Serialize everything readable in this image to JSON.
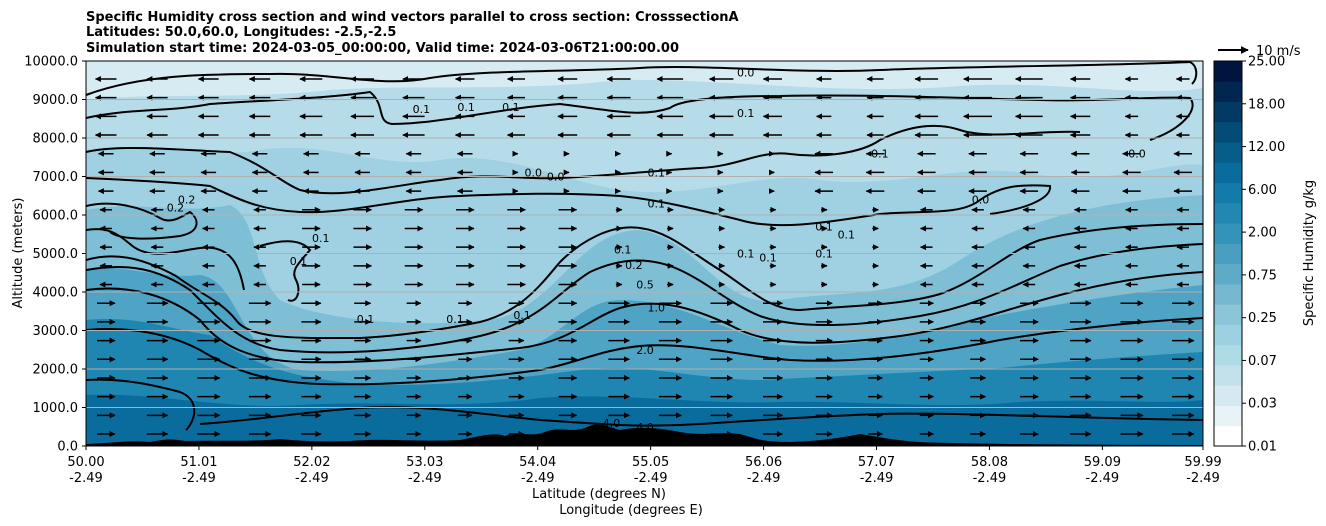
{
  "chart_data": {
    "type": "heatmap",
    "title_lines": [
      "Specific Humidity cross section and wind vectors parallel to cross section: CrosssectionA",
      "Latitudes: 50.0,60.0, Longitudes: -2.5,-2.5",
      "Simulation start time: 2024-03-05_00:00:00, Valid time: 2024-03-06T21:00:00.00"
    ],
    "xlabel_lat": "Latitude (degrees N)",
    "xlabel_lon": "Longitude (degrees E)",
    "ylabel": "Altitude (meters)",
    "x_ticks": [
      {
        "lat": "50.00",
        "lon": "-2.49"
      },
      {
        "lat": "51.01",
        "lon": "-2.49"
      },
      {
        "lat": "52.02",
        "lon": "-2.49"
      },
      {
        "lat": "53.03",
        "lon": "-2.49"
      },
      {
        "lat": "54.04",
        "lon": "-2.49"
      },
      {
        "lat": "55.05",
        "lon": "-2.49"
      },
      {
        "lat": "56.06",
        "lon": "-2.49"
      },
      {
        "lat": "57.07",
        "lon": "-2.49"
      },
      {
        "lat": "58.08",
        "lon": "-2.49"
      },
      {
        "lat": "59.09",
        "lon": "-2.49"
      },
      {
        "lat": "59.99",
        "lon": "-2.49"
      }
    ],
    "x_range": [
      50.0,
      59.99
    ],
    "y_ticks": [
      "0.0",
      "1000.0",
      "2000.0",
      "3000.0",
      "4000.0",
      "5000.0",
      "6000.0",
      "7000.0",
      "8000.0",
      "9000.0",
      "10000.0"
    ],
    "y_range": [
      0,
      10000
    ],
    "grid": true,
    "colorbar": {
      "label": "Specific Humidity g/kg",
      "tick_labels": [
        "0.01",
        "0.03",
        "0.07",
        "0.25",
        "0.75",
        "2.00",
        "6.00",
        "12.00",
        "18.00",
        "25.00"
      ],
      "colors": [
        "#ffffff",
        "#e7f3f6",
        "#d4eaf0",
        "#c2e1ea",
        "#addbe6",
        "#9dd0e0",
        "#8cc5d8",
        "#76b8d0",
        "#5fabc7",
        "#4a9fc0",
        "#3493b9",
        "#2288b2",
        "#137ba9",
        "#0a6c9c",
        "#065d8a",
        "#044c77",
        "#023a63",
        "#012650",
        "#00143f"
      ]
    },
    "quiver_key": {
      "label": "10 m/s",
      "magnitude_ms": 10
    },
    "contour_levels": [
      "0.0",
      "0.1",
      "0.2",
      "0.5",
      "1.0",
      "2.0",
      "4.0"
    ],
    "contour_labels": [
      {
        "text": "0.0",
        "lat": 55.9,
        "alt": 9700
      },
      {
        "text": "0.1",
        "lat": 55.9,
        "alt": 8650
      },
      {
        "text": "0.1",
        "lat": 53.0,
        "alt": 8750
      },
      {
        "text": "0.1",
        "lat": 53.4,
        "alt": 8800
      },
      {
        "text": "0.1",
        "lat": 53.8,
        "alt": 8800
      },
      {
        "text": "0.0",
        "lat": 54.0,
        "alt": 7100
      },
      {
        "text": "0.0",
        "lat": 54.2,
        "alt": 7000
      },
      {
        "text": "0.1",
        "lat": 55.1,
        "alt": 7100
      },
      {
        "text": "0.1",
        "lat": 55.1,
        "alt": 6300
      },
      {
        "text": "0.1",
        "lat": 57.1,
        "alt": 7600
      },
      {
        "text": "0.0",
        "lat": 59.4,
        "alt": 7600
      },
      {
        "text": "0.0",
        "lat": 58.0,
        "alt": 6400
      },
      {
        "text": "0.2",
        "lat": 50.8,
        "alt": 6200
      },
      {
        "text": "0.2",
        "lat": 50.9,
        "alt": 6400
      },
      {
        "text": "0.1",
        "lat": 52.1,
        "alt": 5400
      },
      {
        "text": "0.1",
        "lat": 51.9,
        "alt": 4800
      },
      {
        "text": "0.1",
        "lat": 56.6,
        "alt": 5700
      },
      {
        "text": "0.1",
        "lat": 56.8,
        "alt": 5500
      },
      {
        "text": "0.1",
        "lat": 55.9,
        "alt": 5000
      },
      {
        "text": "0.1",
        "lat": 56.1,
        "alt": 4900
      },
      {
        "text": "0.1",
        "lat": 56.6,
        "alt": 5000
      },
      {
        "text": "0.1",
        "lat": 54.8,
        "alt": 5100
      },
      {
        "text": "0.2",
        "lat": 54.9,
        "alt": 4700
      },
      {
        "text": "0.5",
        "lat": 55.0,
        "alt": 4200
      },
      {
        "text": "1.0",
        "lat": 55.1,
        "alt": 3600
      },
      {
        "text": "0.1",
        "lat": 52.5,
        "alt": 3300
      },
      {
        "text": "0.1",
        "lat": 53.3,
        "alt": 3300
      },
      {
        "text": "0.1",
        "lat": 53.9,
        "alt": 3400
      },
      {
        "text": "2.0",
        "lat": 55.0,
        "alt": 2500
      },
      {
        "text": "4.0",
        "lat": 54.7,
        "alt": 600
      },
      {
        "text": "4.0",
        "lat": 55.0,
        "alt": 500
      }
    ]
  }
}
